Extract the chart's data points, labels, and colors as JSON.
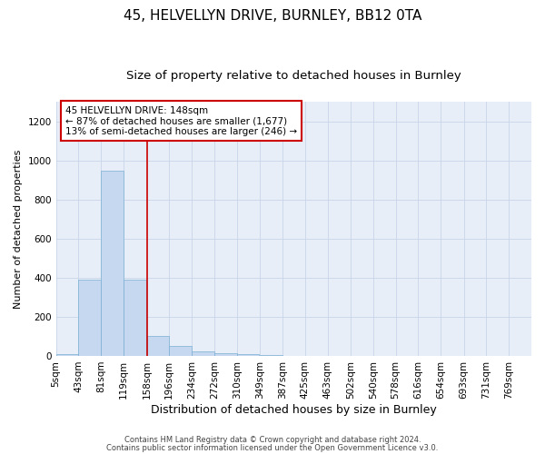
{
  "title": "45, HELVELLYN DRIVE, BURNLEY, BB12 0TA",
  "subtitle": "Size of property relative to detached houses in Burnley",
  "xlabel": "Distribution of detached houses by size in Burnley",
  "ylabel": "Number of detached properties",
  "footnote1": "Contains HM Land Registry data © Crown copyright and database right 2024.",
  "footnote2": "Contains public sector information licensed under the Open Government Licence v3.0.",
  "bin_labels": [
    "5sqm",
    "43sqm",
    "81sqm",
    "119sqm",
    "158sqm",
    "196sqm",
    "234sqm",
    "272sqm",
    "310sqm",
    "349sqm",
    "387sqm",
    "425sqm",
    "463sqm",
    "502sqm",
    "540sqm",
    "578sqm",
    "616sqm",
    "654sqm",
    "693sqm",
    "731sqm",
    "769sqm"
  ],
  "bar_values": [
    10,
    390,
    950,
    390,
    100,
    50,
    25,
    15,
    10,
    5,
    0,
    0,
    0,
    0,
    0,
    0,
    0,
    0,
    0,
    0
  ],
  "bar_color": "#c5d8f0",
  "bar_edge_color": "#7aafd4",
  "grid_color": "#c8d4e8",
  "background_color": "#e8eef8",
  "vline_color": "#cc0000",
  "annotation_text": "45 HELVELLYN DRIVE: 148sqm\n← 87% of detached houses are smaller (1,677)\n13% of semi-detached houses are larger (246) →",
  "annotation_box_color": "#cc0000",
  "ylim": [
    0,
    1300
  ],
  "yticks": [
    0,
    200,
    400,
    600,
    800,
    1000,
    1200
  ],
  "title_fontsize": 11,
  "subtitle_fontsize": 9.5,
  "xlabel_fontsize": 9,
  "ylabel_fontsize": 8,
  "tick_fontsize": 7.5,
  "annotation_fontsize": 7.5,
  "footnote_fontsize": 6
}
